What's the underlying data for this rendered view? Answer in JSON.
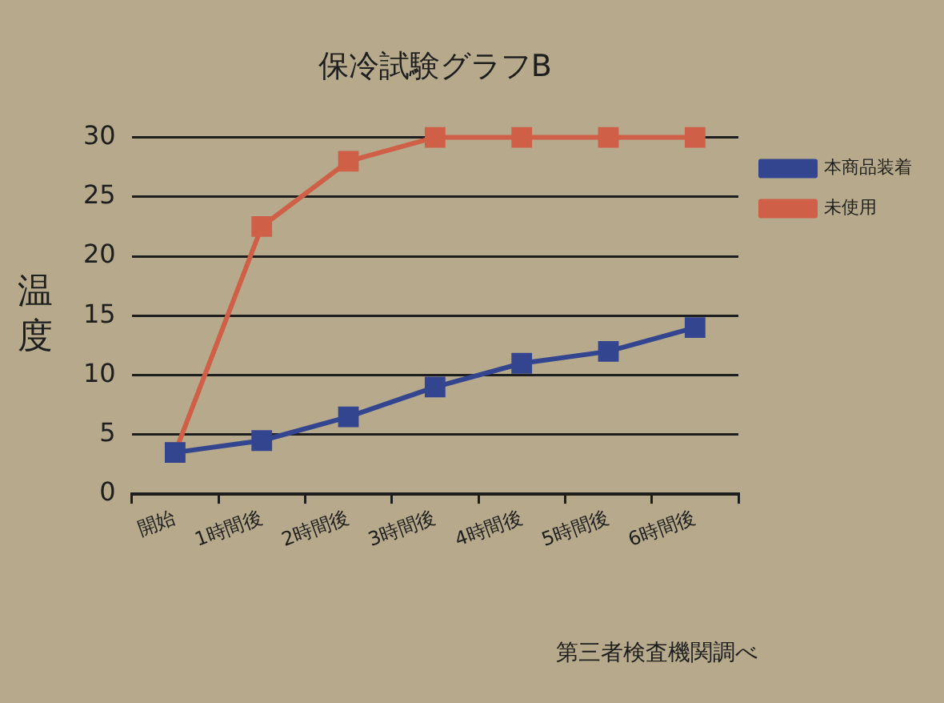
{
  "chart_data": {
    "type": "line",
    "title": "保冷試験グラフB",
    "ylabel": "温度",
    "annotations": [
      "第三者検査機関調べ"
    ],
    "categories": [
      "開始",
      "1時間後",
      "2時間後",
      "3時間後",
      "4時間後",
      "5時間後",
      "6時間後"
    ],
    "series": [
      {
        "name": "本商品装着",
        "color": "#34458f",
        "values": [
          3.5,
          4.5,
          6.5,
          9,
          11,
          12,
          14
        ]
      },
      {
        "name": "未使用",
        "color": "#cf5f47",
        "values": [
          3.5,
          22.5,
          28,
          30,
          30,
          30,
          30
        ]
      }
    ],
    "ylim": [
      0,
      30
    ],
    "yticks": [
      0,
      5,
      10,
      15,
      20,
      25,
      30
    ],
    "grid": "y",
    "legend": "top right",
    "marker": "square",
    "line_style": "solid"
  }
}
